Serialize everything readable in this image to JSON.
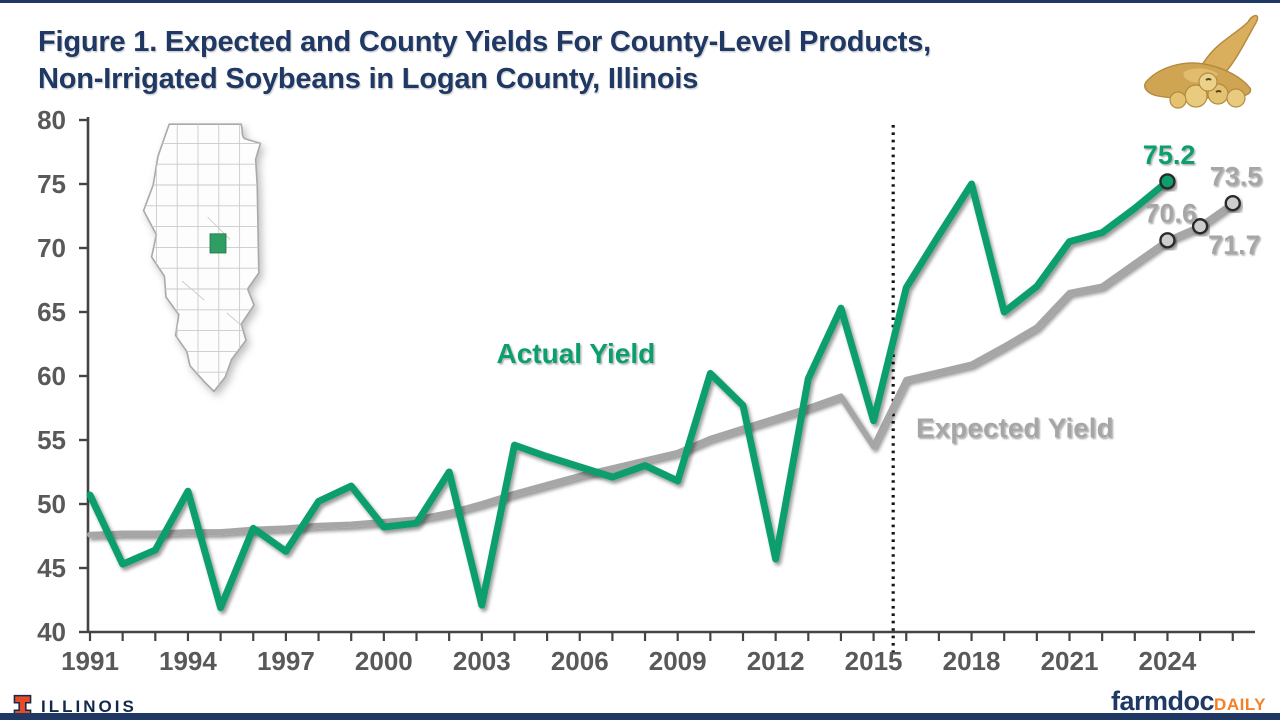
{
  "header": {
    "title_line1": "Figure 1.  Expected and County Yields For County-Level Products,",
    "title_line2": "Non-Irrigated Soybeans in Logan County, Illinois"
  },
  "footer": {
    "illinois": "ILLINOIS",
    "farmdoc": "farmdoc",
    "daily": "DAILY"
  },
  "colors": {
    "green": "#0F9E6E",
    "gray": "#A6A6A6",
    "navy": "#1F3864",
    "orange": "#F58025",
    "axis": "#444444",
    "tick_label": "#595959",
    "vline": "#141414",
    "map_highlight": "#2E9E62"
  },
  "icons": {
    "map": "illinois-county-map-icon",
    "soybean": "soybean-pods-icon",
    "block_i": "illinois-block-i-icon"
  },
  "chart_data": {
    "type": "line",
    "title": "Figure 1. Expected and County Yields For County-Level Products, Non-Irrigated Soybeans in Logan County, Illinois",
    "xlabel": "",
    "ylabel": "",
    "ylim": [
      40,
      80
    ],
    "yticks": [
      40,
      45,
      50,
      55,
      60,
      65,
      70,
      75,
      80
    ],
    "x_range": [
      1991,
      2026
    ],
    "xtick_labels": [
      1991,
      1994,
      1997,
      2000,
      2003,
      2006,
      2009,
      2012,
      2015,
      2018,
      2021,
      2024
    ],
    "grid": false,
    "legend_position": "inline-labels",
    "vline_year": 2015.6,
    "series": [
      {
        "name": "Actual Yield",
        "color": "#0F9E6E",
        "marker_fill": "#0F9E6E",
        "marker_years": [
          2024
        ],
        "x": [
          1991,
          1992,
          1993,
          1994,
          1995,
          1996,
          1997,
          1998,
          1999,
          2000,
          2001,
          2002,
          2003,
          2004,
          2005,
          2006,
          2007,
          2008,
          2009,
          2010,
          2011,
          2012,
          2013,
          2014,
          2015,
          2016,
          2017,
          2018,
          2019,
          2020,
          2021,
          2022,
          2023,
          2024
        ],
        "values": [
          50.7,
          45.3,
          46.4,
          51.0,
          41.9,
          48.1,
          46.3,
          50.2,
          51.4,
          48.2,
          48.5,
          52.5,
          42.1,
          54.6,
          53.7,
          52.9,
          52.1,
          53.0,
          51.8,
          60.2,
          57.7,
          45.7,
          59.8,
          65.3,
          56.5,
          66.9,
          71.0,
          75.0,
          65.0,
          67.0,
          70.5,
          71.2,
          73.1,
          75.2
        ]
      },
      {
        "name": "Expected Yield",
        "color": "#A6A6A6",
        "marker_fill": "#CDCDCD",
        "marker_years": [
          2024,
          2025,
          2026
        ],
        "x": [
          1991,
          1992,
          1993,
          1994,
          1995,
          1996,
          1997,
          1998,
          1999,
          2000,
          2001,
          2002,
          2003,
          2004,
          2005,
          2006,
          2007,
          2008,
          2009,
          2010,
          2011,
          2012,
          2013,
          2014,
          2015,
          2016,
          2017,
          2018,
          2019,
          2020,
          2021,
          2022,
          2023,
          2024,
          2025,
          2026
        ],
        "values": [
          47.6,
          47.7,
          47.7,
          47.8,
          47.8,
          48.0,
          48.1,
          48.3,
          48.4,
          48.6,
          48.8,
          49.3,
          50.0,
          50.8,
          51.5,
          52.2,
          52.8,
          53.4,
          54.0,
          55.1,
          55.9,
          56.7,
          57.5,
          58.4,
          54.5,
          59.7,
          60.3,
          60.9,
          62.3,
          63.8,
          66.5,
          67.0,
          68.8,
          70.6,
          71.7,
          73.5
        ]
      }
    ],
    "annotations": [
      {
        "text": "Actual Yield",
        "year": 2003.45,
        "value": 61.0,
        "color": "green",
        "size": 28,
        "anchor": "start"
      },
      {
        "text": "Expected Yield",
        "year": 2016.3,
        "value": 55.2,
        "color": "gray",
        "size": 28,
        "anchor": "start"
      },
      {
        "text": "75.2",
        "year": 2024.05,
        "value": 76.55,
        "color": "green",
        "size": 27,
        "anchor": "middle"
      },
      {
        "text": "73.5",
        "year": 2026.1,
        "value": 74.9,
        "color": "gray",
        "size": 27,
        "anchor": "middle"
      },
      {
        "text": "70.6",
        "year": 2024.1,
        "value": 72.0,
        "color": "gray",
        "size": 27,
        "anchor": "middle"
      },
      {
        "text": "71.7",
        "year": 2026.05,
        "value": 69.55,
        "color": "gray",
        "size": 27,
        "anchor": "middle"
      }
    ]
  }
}
